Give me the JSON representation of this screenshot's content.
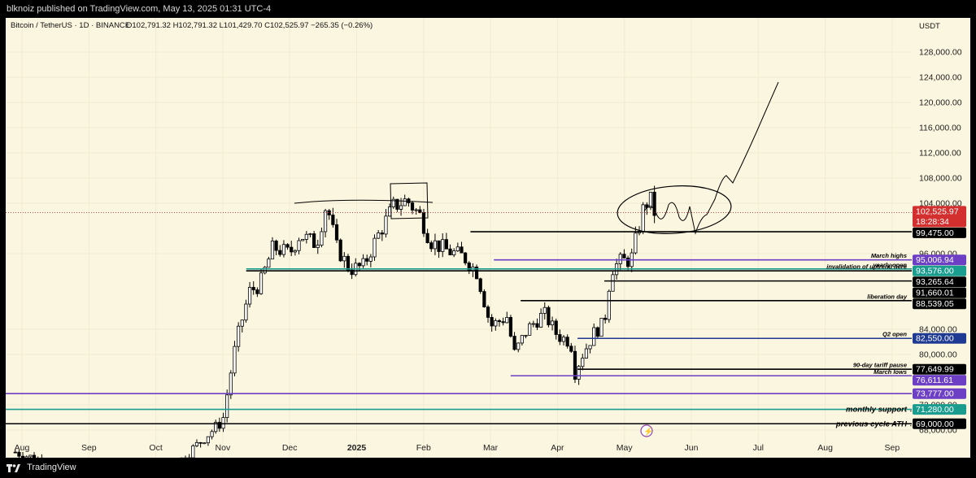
{
  "header": {
    "publisher_line": "blknoiz published on TradingView.com, May 13, 2025 01:31 UTC-4"
  },
  "footer": {
    "brand": "TradingView"
  },
  "chart_data": {
    "type": "candlestick",
    "title": "Bitcoin / TetherUS · 1D · BINANCE",
    "ohlc_line": "O102,791.32 H102,791.32 L101,429.70 C102,525.97 −265.35 (−0.26%)",
    "currency": "USDT",
    "y_ticks": [
      {
        "v": 128000,
        "label": "128,000.00"
      },
      {
        "v": 124000,
        "label": "124,000.00"
      },
      {
        "v": 120000,
        "label": "120,000.00"
      },
      {
        "v": 116000,
        "label": "116,000.00"
      },
      {
        "v": 112000,
        "label": "112,000.00"
      },
      {
        "v": 108000,
        "label": "108,000.00"
      },
      {
        "v": 104000,
        "label": "104,000.00"
      },
      {
        "v": 96000,
        "label": "96,000.00"
      },
      {
        "v": 84000,
        "label": "84,000.00"
      },
      {
        "v": 80000,
        "label": "80,000.00"
      },
      {
        "v": 72000,
        "label": "72,000.00"
      },
      {
        "v": 68000,
        "label": "68,000.00"
      }
    ],
    "x_labels": [
      {
        "label": "Aug",
        "m": 0,
        "bold": false
      },
      {
        "label": "Sep",
        "m": 1,
        "bold": false
      },
      {
        "label": "Oct",
        "m": 2,
        "bold": false
      },
      {
        "label": "Nov",
        "m": 3,
        "bold": false
      },
      {
        "label": "Dec",
        "m": 4,
        "bold": false
      },
      {
        "label": "2025",
        "m": 5,
        "bold": true
      },
      {
        "label": "Feb",
        "m": 6,
        "bold": false
      },
      {
        "label": "Mar",
        "m": 7,
        "bold": false
      },
      {
        "label": "Apr",
        "m": 8,
        "bold": false
      },
      {
        "label": "May",
        "m": 9,
        "bold": false
      },
      {
        "label": "Jun",
        "m": 10,
        "bold": false
      },
      {
        "label": "Jul",
        "m": 11,
        "bold": false
      },
      {
        "label": "Aug",
        "m": 12,
        "bold": false
      },
      {
        "label": "Sep",
        "m": 13,
        "bold": false
      }
    ],
    "current_price": {
      "value": 102525.97,
      "label": "102,525.97",
      "countdown": "18:28:34",
      "color": "#d32f2f"
    },
    "levels": [
      {
        "value": 99475,
        "label": "99,475.00",
        "color": "#000000",
        "text": "",
        "m_start": 6.7
      },
      {
        "value": 95006.94,
        "label": "95,006.94",
        "color": "#6c3fc4",
        "text": "March highs",
        "m_start": 7.05
      },
      {
        "value": 93576,
        "label": "93,576.00",
        "color": "#1a9d8f",
        "text": "yearly open",
        "m_start": 3.35
      },
      {
        "value": 93265.64,
        "label": "93,265.64",
        "color": "#000000",
        "text": "invalidation of uptrend here",
        "m_start": 3.35
      },
      {
        "value": 91660.01,
        "label": "91,660.01",
        "color": "#000000",
        "text": "",
        "m_start": 8.7
      },
      {
        "value": 88539.05,
        "label": "88,539.05",
        "color": "#000000",
        "text": "liberation day",
        "m_start": 7.45
      },
      {
        "value": 82550,
        "label": "82,550.00",
        "color": "#1f3a93",
        "text": "Q2 open",
        "m_start": 8.3
      },
      {
        "value": 77649.99,
        "label": "77,649.99",
        "color": "#000000",
        "text": "90-day tariff pause",
        "m_start": 8.3
      },
      {
        "value": 76611.61,
        "label": "76,611.61",
        "color": "#6c3fc4",
        "text": "March lows",
        "m_start": 7.3
      },
      {
        "value": 73777,
        "label": "73,777.00",
        "color": "#6c3fc4",
        "text": "",
        "m_start": -1
      },
      {
        "value": 71280,
        "label": "71,280.00",
        "color": "#1a9d8f",
        "text": "monthly support",
        "m_start": -1
      },
      {
        "value": 69000,
        "label": "69,000.00",
        "color": "#000000",
        "text": "previous cycle ATH",
        "m_start": -1
      }
    ],
    "closes": [
      {
        "m": -0.1,
        "c": 64500
      },
      {
        "m": 1.2,
        "c": 60000
      },
      {
        "m": 2.3,
        "c": 62500
      },
      {
        "m": 2.7,
        "c": 66500
      },
      {
        "m": 3.0,
        "c": 69500
      },
      {
        "m": 3.1,
        "c": 76000
      },
      {
        "m": 3.2,
        "c": 82000
      },
      {
        "m": 3.4,
        "c": 90000
      },
      {
        "m": 3.55,
        "c": 91000
      },
      {
        "m": 3.75,
        "c": 97000
      },
      {
        "m": 4.0,
        "c": 96000
      },
      {
        "m": 4.15,
        "c": 99000
      },
      {
        "m": 4.4,
        "c": 97500
      },
      {
        "m": 4.55,
        "c": 104000
      },
      {
        "m": 4.7,
        "c": 97000
      },
      {
        "m": 4.9,
        "c": 93500
      },
      {
        "m": 5.1,
        "c": 94000
      },
      {
        "m": 5.3,
        "c": 98500
      },
      {
        "m": 5.55,
        "c": 103500
      },
      {
        "m": 5.75,
        "c": 104500
      },
      {
        "m": 5.95,
        "c": 102000
      },
      {
        "m": 6.1,
        "c": 98000
      },
      {
        "m": 6.35,
        "c": 96500
      },
      {
        "m": 6.6,
        "c": 95500
      },
      {
        "m": 6.8,
        "c": 93000
      },
      {
        "m": 7.0,
        "c": 84500
      },
      {
        "m": 7.25,
        "c": 86000
      },
      {
        "m": 7.35,
        "c": 80000
      },
      {
        "m": 7.55,
        "c": 84000
      },
      {
        "m": 7.8,
        "c": 86500
      },
      {
        "m": 8.0,
        "c": 83000
      },
      {
        "m": 8.2,
        "c": 82000
      },
      {
        "m": 8.25,
        "c": 76800
      },
      {
        "m": 8.35,
        "c": 79500
      },
      {
        "m": 8.55,
        "c": 83500
      },
      {
        "m": 8.7,
        "c": 85000
      },
      {
        "m": 8.8,
        "c": 93500
      },
      {
        "m": 8.95,
        "c": 94800
      },
      {
        "m": 9.1,
        "c": 95000
      },
      {
        "m": 9.2,
        "c": 99500
      },
      {
        "m": 9.3,
        "c": 103800
      },
      {
        "m": 9.4,
        "c": 104500
      },
      {
        "m": 9.45,
        "c": 102526
      }
    ]
  }
}
